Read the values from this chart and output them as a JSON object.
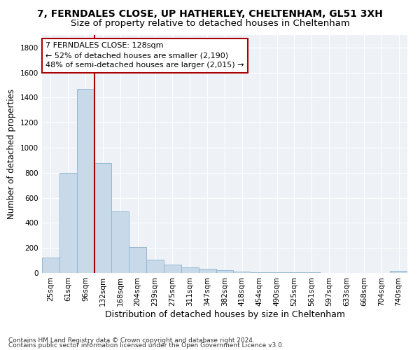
{
  "title1": "7, FERNDALES CLOSE, UP HATHERLEY, CHELTENHAM, GL51 3XH",
  "title2": "Size of property relative to detached houses in Cheltenham",
  "xlabel": "Distribution of detached houses by size in Cheltenham",
  "ylabel": "Number of detached properties",
  "footer1": "Contains HM Land Registry data © Crown copyright and database right 2024.",
  "footer2": "Contains public sector information licensed under the Open Government Licence v3.0.",
  "categories": [
    "25sqm",
    "61sqm",
    "96sqm",
    "132sqm",
    "168sqm",
    "204sqm",
    "239sqm",
    "275sqm",
    "311sqm",
    "347sqm",
    "382sqm",
    "418sqm",
    "454sqm",
    "490sqm",
    "525sqm",
    "561sqm",
    "597sqm",
    "633sqm",
    "668sqm",
    "704sqm",
    "740sqm"
  ],
  "values": [
    125,
    800,
    1470,
    880,
    490,
    205,
    105,
    65,
    42,
    35,
    22,
    10,
    8,
    5,
    4,
    3,
    2,
    2,
    1,
    1,
    15
  ],
  "bar_color": "#c8d9ea",
  "bar_edge_color": "#94b8d0",
  "annotation_text": "7 FERNDALES CLOSE: 128sqm\n← 52% of detached houses are smaller (2,190)\n48% of semi-detached houses are larger (2,015) →",
  "annotation_box_color": "#ffffff",
  "annotation_box_edge_color": "#aa0000",
  "vline_color": "#aa0000",
  "vline_x_index": 3,
  "ylim": [
    0,
    1900
  ],
  "yticks": [
    0,
    200,
    400,
    600,
    800,
    1000,
    1200,
    1400,
    1600,
    1800
  ],
  "title1_fontsize": 10,
  "title2_fontsize": 9.5,
  "xlabel_fontsize": 9,
  "ylabel_fontsize": 8.5,
  "tick_fontsize": 7.5,
  "annotation_fontsize": 8,
  "footer_fontsize": 6.5,
  "background_color": "#ffffff",
  "plot_bg_color": "#eef2f7",
  "grid_color": "#ffffff"
}
